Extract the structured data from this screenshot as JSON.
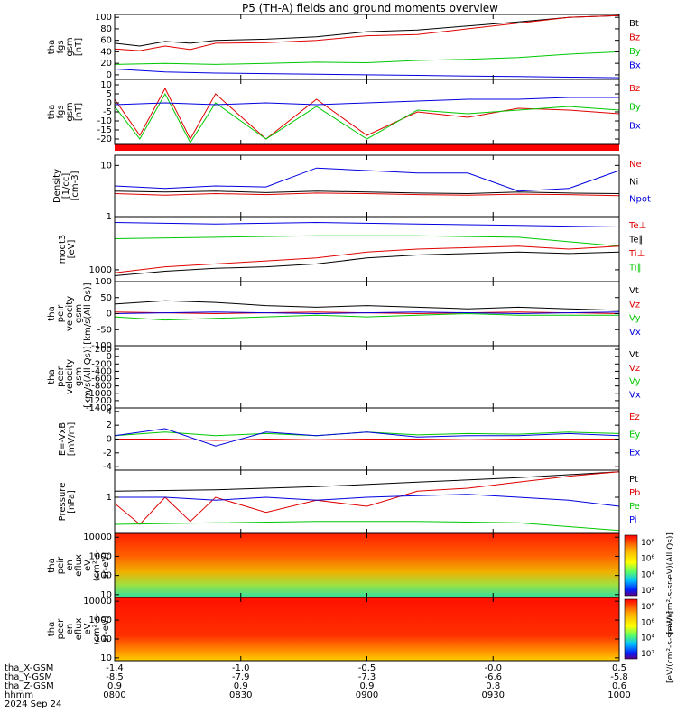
{
  "title": "P5 (TH-A) fields and ground moments overview",
  "colors": {
    "black": "#000000",
    "red": "#e00000",
    "green": "#00c800",
    "blue": "#0000e0"
  },
  "chart_data": [
    {
      "type": "line",
      "ylabel": [
        "tha",
        "fgs",
        "gsm",
        "[nT]"
      ],
      "ylim": [
        -8,
        105
      ],
      "yticks": [
        "0",
        "20",
        "40",
        "60",
        "80",
        "100"
      ],
      "ytick_values": [
        0,
        20,
        40,
        60,
        80,
        100
      ],
      "legend": [
        {
          "name": "Bt",
          "color": "black"
        },
        {
          "name": "Bz",
          "color": "red"
        },
        {
          "name": "By",
          "color": "green"
        },
        {
          "name": "Bx",
          "color": "blue"
        }
      ],
      "series": [
        {
          "name": "Bt",
          "color": "black",
          "x": [
            0,
            0.05,
            0.1,
            0.15,
            0.2,
            0.3,
            0.4,
            0.5,
            0.6,
            0.7,
            0.8,
            0.9,
            1.0
          ],
          "y": [
            55,
            50,
            58,
            55,
            60,
            62,
            66,
            75,
            78,
            85,
            92,
            100,
            103
          ]
        },
        {
          "name": "Bz",
          "color": "red",
          "x": [
            0,
            0.05,
            0.1,
            0.15,
            0.2,
            0.3,
            0.4,
            0.5,
            0.6,
            0.7,
            0.8,
            0.9,
            1.0
          ],
          "y": [
            45,
            42,
            50,
            44,
            55,
            56,
            60,
            68,
            70,
            80,
            90,
            100,
            103
          ]
        },
        {
          "name": "By",
          "color": "green",
          "x": [
            0,
            0.1,
            0.2,
            0.3,
            0.4,
            0.5,
            0.6,
            0.7,
            0.8,
            0.9,
            1.0
          ],
          "y": [
            18,
            20,
            18,
            20,
            22,
            21,
            25,
            27,
            30,
            36,
            40
          ]
        },
        {
          "name": "Bx",
          "color": "blue",
          "x": [
            0,
            0.1,
            0.2,
            0.3,
            0.4,
            0.5,
            0.6,
            0.7,
            0.8,
            0.9,
            1.0
          ],
          "y": [
            10,
            5,
            3,
            2,
            1,
            0,
            -1,
            -2,
            -3,
            -4,
            -5
          ]
        }
      ]
    },
    {
      "type": "line",
      "ylabel": [
        "tha",
        "fgs",
        "gsm",
        "[nT]"
      ],
      "ylim": [
        -23,
        13
      ],
      "yticks": [
        "10",
        "5",
        "0",
        "-5",
        "-10",
        "-15",
        "-20"
      ],
      "ytick_values": [
        10,
        5,
        0,
        -5,
        -10,
        -15,
        -20
      ],
      "legend": [
        {
          "name": "Bz",
          "color": "red"
        },
        {
          "name": "By",
          "color": "green"
        },
        {
          "name": "Bx",
          "color": "blue"
        }
      ],
      "series": [
        {
          "name": "Bz",
          "color": "red",
          "x": [
            0,
            0.05,
            0.1,
            0.15,
            0.2,
            0.3,
            0.4,
            0.5,
            0.6,
            0.7,
            0.8,
            0.9,
            1.0
          ],
          "y": [
            2,
            -18,
            8,
            -20,
            5,
            -20,
            2,
            -18,
            -5,
            -8,
            -3,
            -4,
            -6
          ]
        },
        {
          "name": "By",
          "color": "green",
          "x": [
            0,
            0.05,
            0.1,
            0.15,
            0.2,
            0.3,
            0.4,
            0.5,
            0.6,
            0.7,
            0.8,
            0.9,
            1.0
          ],
          "y": [
            -2,
            -20,
            5,
            -22,
            0,
            -20,
            -2,
            -20,
            -4,
            -6,
            -4,
            -2,
            -4
          ]
        },
        {
          "name": "Bx",
          "color": "blue",
          "x": [
            0,
            0.1,
            0.2,
            0.3,
            0.4,
            0.5,
            0.6,
            0.7,
            0.8,
            0.9,
            1.0
          ],
          "y": [
            -1,
            0,
            -1,
            0,
            -1,
            0,
            1,
            2,
            2,
            3,
            3
          ]
        }
      ]
    },
    {
      "type": "line",
      "ylabel": [
        "Density",
        "[1/cc]",
        "[cm-3]"
      ],
      "ylim": [
        0,
        1.2
      ],
      "log": true,
      "yticks": [
        "10",
        "1"
      ],
      "ytick_values": [
        1,
        0
      ],
      "legend": [
        {
          "name": "Ne",
          "color": "red"
        },
        {
          "name": "Ni",
          "color": "black"
        },
        {
          "name": "Npot",
          "color": "blue"
        }
      ],
      "series": [
        {
          "name": "Ne",
          "color": "red",
          "x": [
            0,
            0.1,
            0.2,
            0.3,
            0.4,
            0.5,
            0.6,
            0.7,
            0.8,
            0.9,
            1.0
          ],
          "y": [
            0.45,
            0.42,
            0.45,
            0.43,
            0.46,
            0.45,
            0.43,
            0.42,
            0.44,
            0.43,
            0.41
          ]
        },
        {
          "name": "Ni",
          "color": "black",
          "x": [
            0,
            0.1,
            0.2,
            0.3,
            0.4,
            0.5,
            0.6,
            0.7,
            0.8,
            0.9,
            1.0
          ],
          "y": [
            0.5,
            0.48,
            0.5,
            0.47,
            0.5,
            0.48,
            0.46,
            0.45,
            0.48,
            0.46,
            0.45
          ]
        },
        {
          "name": "Npot",
          "color": "blue",
          "x": [
            0,
            0.1,
            0.2,
            0.3,
            0.4,
            0.5,
            0.6,
            0.7,
            0.8,
            0.9,
            1.0
          ],
          "y": [
            0.6,
            0.55,
            0.6,
            0.58,
            0.95,
            0.9,
            0.85,
            0.85,
            0.5,
            0.55,
            0.9
          ]
        }
      ]
    },
    {
      "type": "line",
      "ylabel": [
        "moqt3",
        "[eV]"
      ],
      "ylim": [
        2.6,
        4.8
      ],
      "log": true,
      "yticks": [
        "1000"
      ],
      "ytick_values": [
        3
      ],
      "legend": [
        {
          "name": "Te⊥",
          "color": "red"
        },
        {
          "name": "Te∥",
          "color": "black"
        },
        {
          "name": "Ti⊥",
          "color": "red"
        },
        {
          "name": "Ti∥",
          "color": "green"
        }
      ],
      "series": [
        {
          "name": "Ti",
          "color": "blue",
          "x": [
            0,
            0.2,
            0.4,
            0.6,
            0.8,
            1.0
          ],
          "y": [
            4.6,
            4.55,
            4.6,
            4.55,
            4.5,
            4.45
          ]
        },
        {
          "name": "Ti∥",
          "color": "green",
          "x": [
            0,
            0.2,
            0.4,
            0.6,
            0.8,
            1.0
          ],
          "y": [
            4.05,
            4.1,
            4.15,
            4.15,
            4.1,
            3.8
          ]
        },
        {
          "name": "Te⊥",
          "color": "red",
          "x": [
            0,
            0.1,
            0.2,
            0.3,
            0.4,
            0.5,
            0.6,
            0.7,
            0.8,
            0.9,
            1.0
          ],
          "y": [
            2.9,
            3.1,
            3.2,
            3.3,
            3.4,
            3.6,
            3.7,
            3.75,
            3.8,
            3.7,
            3.8
          ]
        },
        {
          "name": "Te∥",
          "color": "black",
          "x": [
            0,
            0.1,
            0.2,
            0.3,
            0.4,
            0.5,
            0.6,
            0.7,
            0.8,
            0.9,
            1.0
          ],
          "y": [
            2.8,
            2.95,
            3.05,
            3.1,
            3.2,
            3.4,
            3.5,
            3.55,
            3.6,
            3.55,
            3.6
          ]
        }
      ]
    },
    {
      "type": "line",
      "ylabel": [
        "tha",
        "peir",
        "velocity",
        "gsm",
        "[km/s(All Qs)]"
      ],
      "ylim": [
        -100,
        100
      ],
      "yticks": [
        "100",
        "50",
        "0",
        "-50",
        "-100"
      ],
      "ytick_values": [
        100,
        50,
        0,
        -50,
        -100
      ],
      "legend": [
        {
          "name": "Vt",
          "color": "black"
        },
        {
          "name": "Vz",
          "color": "red"
        },
        {
          "name": "Vy",
          "color": "green"
        },
        {
          "name": "Vx",
          "color": "blue"
        }
      ],
      "series": [
        {
          "name": "Vt",
          "color": "black",
          "x": [
            0,
            0.1,
            0.2,
            0.3,
            0.4,
            0.5,
            0.6,
            0.7,
            0.8,
            0.9,
            1.0
          ],
          "y": [
            30,
            40,
            35,
            25,
            20,
            25,
            20,
            15,
            20,
            15,
            10
          ]
        },
        {
          "name": "Vz",
          "color": "red",
          "x": [
            0,
            0.2,
            0.4,
            0.6,
            0.8,
            1.0
          ],
          "y": [
            5,
            0,
            5,
            0,
            5,
            0
          ]
        },
        {
          "name": "Vy",
          "color": "green",
          "x": [
            0,
            0.1,
            0.2,
            0.3,
            0.4,
            0.5,
            0.6,
            0.7,
            0.8,
            0.9,
            1.0
          ],
          "y": [
            -10,
            -20,
            -15,
            -10,
            -5,
            -10,
            -5,
            0,
            -5,
            -5,
            -5
          ]
        },
        {
          "name": "Vx",
          "color": "blue",
          "x": [
            0,
            0.2,
            0.4,
            0.6,
            0.8,
            1.0
          ],
          "y": [
            0,
            5,
            0,
            5,
            0,
            5
          ]
        }
      ]
    },
    {
      "type": "line",
      "ylabel": [
        "tha",
        "peer",
        "velocity",
        "gsm",
        "[km/s(All Qs)]"
      ],
      "ylim": [
        -1400,
        300
      ],
      "yticks": [
        "200",
        "0",
        "-200",
        "-400",
        "-600",
        "-800",
        "-1000",
        "-1200",
        "-1400"
      ],
      "ytick_values": [
        200,
        0,
        -200,
        -400,
        -600,
        -800,
        -1000,
        -1200,
        -1400
      ],
      "legend": [
        {
          "name": "Vt",
          "color": "black"
        },
        {
          "name": "Vz",
          "color": "red"
        },
        {
          "name": "Vy",
          "color": "green"
        },
        {
          "name": "Vx",
          "color": "blue"
        }
      ],
      "series": []
    },
    {
      "type": "line",
      "ylabel": [
        "E=-VxB",
        "[mV/m]"
      ],
      "ylim": [
        -4.5,
        4.5
      ],
      "yticks": [
        "4",
        "2",
        "0",
        "-2",
        "-4"
      ],
      "ytick_values": [
        4,
        2,
        0,
        -2,
        -4
      ],
      "legend": [
        {
          "name": "Ez",
          "color": "red"
        },
        {
          "name": "Ey",
          "color": "green"
        },
        {
          "name": "Ex",
          "color": "blue"
        }
      ],
      "series": [
        {
          "name": "Ey",
          "color": "green",
          "x": [
            0,
            0.1,
            0.2,
            0.3,
            0.4,
            0.5,
            0.6,
            0.7,
            0.8,
            0.9,
            1.0
          ],
          "y": [
            0.5,
            1,
            0.5,
            0.8,
            0.5,
            1,
            0.6,
            0.8,
            0.7,
            1,
            0.8
          ]
        },
        {
          "name": "Ez",
          "color": "red",
          "x": [
            0,
            0.1,
            0.2,
            0.3,
            0.4,
            0.5,
            0.6,
            0.7,
            0.8,
            0.9,
            1.0
          ],
          "y": [
            0,
            0,
            -0.2,
            0,
            -0.1,
            0,
            0,
            -0.1,
            0,
            0,
            0
          ]
        },
        {
          "name": "Ex",
          "color": "blue",
          "x": [
            0,
            0.1,
            0.2,
            0.3,
            0.4,
            0.5,
            0.6,
            0.7,
            0.8,
            0.9,
            1.0
          ],
          "y": [
            0.5,
            1.5,
            -1,
            1,
            0.5,
            1,
            0.3,
            0.5,
            0.5,
            0.8,
            0.5
          ]
        }
      ]
    },
    {
      "type": "line",
      "ylabel": [
        "Pressure",
        "[nPa]"
      ],
      "ylim": [
        -1.2,
        0.9
      ],
      "log": true,
      "yticks": [
        "1"
      ],
      "ytick_values": [
        0
      ],
      "legend": [
        {
          "name": "Pt",
          "color": "black"
        },
        {
          "name": "Pb",
          "color": "red"
        },
        {
          "name": "Pe",
          "color": "green"
        },
        {
          "name": "Pi",
          "color": "blue"
        }
      ],
      "series": [
        {
          "name": "Pt",
          "color": "black",
          "x": [
            0,
            0.2,
            0.4,
            0.6,
            0.8,
            1.0
          ],
          "y": [
            0.2,
            0.25,
            0.35,
            0.5,
            0.65,
            0.85
          ]
        },
        {
          "name": "Pb",
          "color": "red",
          "x": [
            0,
            0.05,
            0.1,
            0.15,
            0.2,
            0.3,
            0.4,
            0.5,
            0.6,
            0.7,
            0.8,
            0.9,
            1.0
          ],
          "y": [
            -0.2,
            -0.9,
            0,
            -0.8,
            0,
            -0.5,
            -0.1,
            -0.3,
            0.2,
            0.3,
            0.5,
            0.7,
            0.85
          ]
        },
        {
          "name": "Pe",
          "color": "green",
          "x": [
            0,
            0.2,
            0.4,
            0.6,
            0.8,
            1.0
          ],
          "y": [
            -0.9,
            -0.85,
            -0.8,
            -0.8,
            -0.85,
            -1.1
          ]
        },
        {
          "name": "Pi",
          "color": "blue",
          "x": [
            0,
            0.1,
            0.2,
            0.3,
            0.4,
            0.5,
            0.6,
            0.7,
            0.8,
            0.9,
            1.0
          ],
          "y": [
            0,
            0,
            -0.1,
            0,
            -0.1,
            0,
            0.05,
            0.1,
            0,
            -0.1,
            -0.3
          ]
        }
      ]
    },
    {
      "type": "heatmap",
      "ylabel": [
        "tha",
        "peir",
        "en",
        "eflux",
        "eV",
        "(cm²-s-",
        "sr-eV)"
      ],
      "ylim": [
        0.85,
        4.2
      ],
      "log": true,
      "yticks": [
        "10000",
        "1000",
        "100",
        "10"
      ],
      "ytick_values": [
        4,
        3,
        2,
        1
      ],
      "colorbar_label": "[eV/(cm²-s-sr-eV)(All Qs)]",
      "colorbar_ticks": [
        "10⁸",
        "10⁶",
        "10⁴",
        "10²"
      ]
    },
    {
      "type": "heatmap",
      "ylabel": [
        "tha",
        "peer",
        "en",
        "eflux",
        "eV",
        "(cm²-s-",
        "sr-eV)"
      ],
      "ylim": [
        0.85,
        4.2
      ],
      "log": true,
      "yticks": [
        "10000",
        "1000",
        "100",
        "10"
      ],
      "ytick_values": [
        4,
        3,
        2,
        1
      ],
      "colorbar_label": "[eV/(cm²-s-sr-eV)]",
      "colorbar_ticks": [
        "10⁸",
        "10⁶",
        "10⁴",
        "10²"
      ]
    }
  ],
  "xaxis": {
    "row_labels": [
      "tha_X-GSM",
      "tha_Y-GSM",
      "tha_Z-GSM",
      "hhmm",
      "2024 Sep 24"
    ],
    "ticks": [
      {
        "x": 0.0,
        "vals": [
          "-1.4",
          "-8.5",
          "0.9",
          "0800"
        ]
      },
      {
        "x": 0.25,
        "vals": [
          "-1.0",
          "-7.9",
          "0.9",
          "0830"
        ]
      },
      {
        "x": 0.5,
        "vals": [
          "-0.5",
          "-7.3",
          "0.9",
          "0900"
        ]
      },
      {
        "x": 0.75,
        "vals": [
          "-0.0",
          "-6.6",
          "0.8",
          "0930"
        ]
      },
      {
        "x": 1.0,
        "vals": [
          "0.5",
          "-5.8",
          "0.6",
          "1000"
        ]
      }
    ]
  }
}
